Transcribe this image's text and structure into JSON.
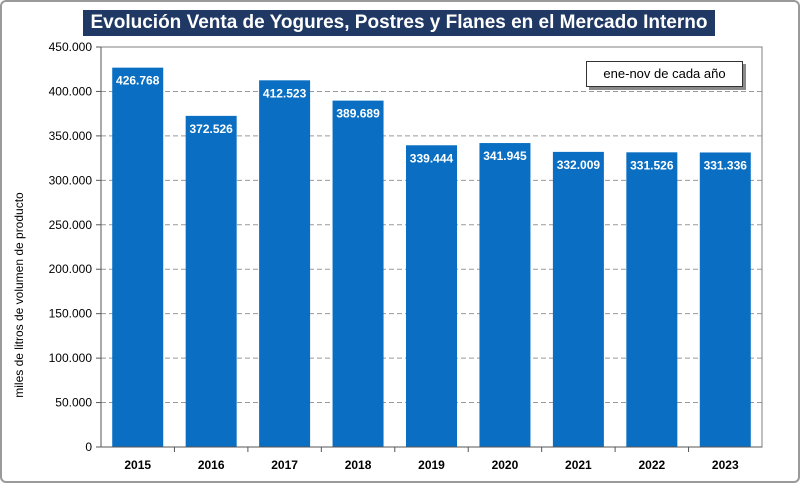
{
  "title": "Evolución Venta de Yogures, Postres y Flanes en el Mercado Interno",
  "note": "ene-nov de cada año",
  "colors": {
    "bar": "#0a6fc2",
    "title_bg": "#1f3864",
    "grid": "#9a9a9a"
  },
  "chart_data": {
    "type": "bar",
    "title": "Evolución Venta de Yogures, Postres y Flanes en el Mercado Interno",
    "xlabel": "",
    "ylabel": "miles de litros de volumen de producto",
    "categories": [
      "2015",
      "2016",
      "2017",
      "2018",
      "2019",
      "2020",
      "2021",
      "2022",
      "2023"
    ],
    "values": [
      426768,
      372526,
      412523,
      389689,
      339444,
      341945,
      332009,
      331526,
      331336
    ],
    "value_labels": [
      "426.768",
      "372.526",
      "412.523",
      "389.689",
      "339.444",
      "341.945",
      "332.009",
      "331.526",
      "331.336"
    ],
    "ylim": [
      0,
      450000
    ],
    "yticks": [
      0,
      50000,
      100000,
      150000,
      200000,
      250000,
      300000,
      350000,
      400000,
      450000
    ],
    "ytick_labels": [
      "0",
      "50.000",
      "100.000",
      "150.000",
      "200.000",
      "250.000",
      "300.000",
      "350.000",
      "400.000",
      "450.000"
    ],
    "grid": true,
    "annotation": "ene-nov de cada año"
  }
}
